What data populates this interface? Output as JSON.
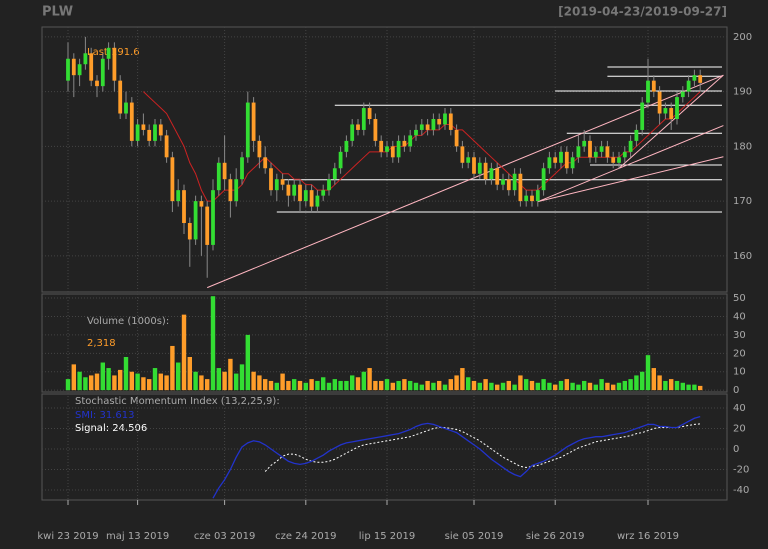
{
  "chart_data": {
    "type": "candlestick",
    "title": "PLW",
    "range_label": "[2019-04-23/2019-09-27]",
    "last_label": "Last 191.6",
    "up_color": "#33dd33",
    "down_color": "#ff9d2a",
    "sma_color": "#cc2222",
    "level_color": "#ffffff",
    "trend_color": "#ffb6c1",
    "ylim": [
      153.4,
      201.8
    ],
    "yticks": [
      160,
      170,
      180,
      190,
      200
    ],
    "xticks": [
      {
        "value": 0,
        "label": "kwi 23 2019"
      },
      {
        "value": 12,
        "label": "maj 13 2019"
      },
      {
        "value": 27,
        "label": "cze 03 2019"
      },
      {
        "value": 41,
        "label": "cze 24 2019"
      },
      {
        "value": 55,
        "label": "lip 15 2019"
      },
      {
        "value": 70,
        "label": "sie 05 2019"
      },
      {
        "value": 84,
        "label": "sie 26 2019"
      },
      {
        "value": 100,
        "label": "wrz 16 2019"
      }
    ],
    "candles": [
      [
        192,
        199,
        190,
        196
      ],
      [
        196,
        197,
        189,
        193
      ],
      [
        193,
        196,
        191,
        195
      ],
      [
        195,
        200,
        194,
        197
      ],
      [
        197,
        198,
        191,
        192
      ],
      [
        192,
        193,
        189,
        191
      ],
      [
        191,
        197,
        190,
        196
      ],
      [
        196,
        199,
        194,
        198
      ],
      [
        198,
        199,
        190,
        192
      ],
      [
        192,
        193,
        185,
        186
      ],
      [
        186,
        190,
        185,
        188
      ],
      [
        188,
        189,
        180,
        181
      ],
      [
        181,
        185,
        180,
        184
      ],
      [
        184,
        186,
        182,
        183
      ],
      [
        183,
        184,
        180,
        181
      ],
      [
        181,
        185,
        180,
        184
      ],
      [
        184,
        185,
        181,
        182
      ],
      [
        182,
        183,
        177,
        178
      ],
      [
        178,
        179,
        168,
        170
      ],
      [
        170,
        174,
        169,
        172
      ],
      [
        172,
        173,
        164,
        166
      ],
      [
        166,
        167,
        158,
        163
      ],
      [
        163,
        171,
        162,
        170
      ],
      [
        170,
        171,
        160,
        169
      ],
      [
        169,
        170,
        156,
        162
      ],
      [
        162,
        174,
        161,
        172
      ],
      [
        172,
        178,
        171,
        177
      ],
      [
        177,
        182,
        172,
        174
      ],
      [
        174,
        175,
        167,
        170
      ],
      [
        170,
        176,
        169,
        174
      ],
      [
        174,
        179,
        173,
        178
      ],
      [
        178,
        190,
        177,
        188
      ],
      [
        188,
        189,
        179,
        181
      ],
      [
        181,
        182,
        176,
        178
      ],
      [
        178,
        180,
        175,
        176
      ],
      [
        176,
        177,
        171,
        172
      ],
      [
        172,
        175,
        170,
        174
      ],
      [
        174,
        175,
        172,
        173
      ],
      [
        173,
        174,
        169,
        171
      ],
      [
        171,
        174,
        170,
        173
      ],
      [
        173,
        174,
        168,
        170
      ],
      [
        170,
        173,
        169,
        172
      ],
      [
        172,
        173,
        168,
        169
      ],
      [
        169,
        172,
        168,
        171
      ],
      [
        171,
        173,
        170,
        172
      ],
      [
        172,
        175,
        171,
        174
      ],
      [
        174,
        177,
        173,
        176
      ],
      [
        176,
        180,
        175,
        179
      ],
      [
        179,
        182,
        178,
        181
      ],
      [
        181,
        185,
        180,
        184
      ],
      [
        184,
        185,
        182,
        183
      ],
      [
        183,
        188,
        182,
        187
      ],
      [
        187,
        188,
        184,
        185
      ],
      [
        185,
        186,
        180,
        181
      ],
      [
        181,
        182,
        178,
        179
      ],
      [
        179,
        181,
        178,
        180
      ],
      [
        180,
        181,
        177,
        178
      ],
      [
        178,
        182,
        177,
        181
      ],
      [
        181,
        182,
        179,
        180
      ],
      [
        180,
        183,
        179,
        182
      ],
      [
        182,
        184,
        181,
        183
      ],
      [
        183,
        185,
        182,
        184
      ],
      [
        184,
        185,
        182,
        183
      ],
      [
        183,
        186,
        182,
        185
      ],
      [
        185,
        186,
        183,
        184
      ],
      [
        184,
        187,
        183,
        186
      ],
      [
        186,
        187,
        182,
        183
      ],
      [
        183,
        184,
        179,
        180
      ],
      [
        180,
        181,
        176,
        177
      ],
      [
        177,
        179,
        176,
        178
      ],
      [
        178,
        179,
        174,
        175
      ],
      [
        175,
        178,
        174,
        177
      ],
      [
        177,
        178,
        173,
        174
      ],
      [
        174,
        177,
        173,
        176
      ],
      [
        176,
        177,
        172,
        173
      ],
      [
        173,
        175,
        172,
        174
      ],
      [
        174,
        175,
        171,
        172
      ],
      [
        172,
        176,
        171,
        175
      ],
      [
        175,
        176,
        169,
        170
      ],
      [
        170,
        172,
        169,
        171
      ],
      [
        171,
        172,
        169,
        170
      ],
      [
        170,
        173,
        169,
        172
      ],
      [
        172,
        177,
        171,
        176
      ],
      [
        176,
        179,
        175,
        178
      ],
      [
        178,
        179,
        176,
        177
      ],
      [
        177,
        180,
        176,
        179
      ],
      [
        179,
        180,
        175,
        176
      ],
      [
        176,
        179,
        175,
        178
      ],
      [
        178,
        182,
        177,
        180
      ],
      [
        180,
        183,
        179,
        181
      ],
      [
        181,
        182,
        177,
        178
      ],
      [
        178,
        180,
        177,
        179
      ],
      [
        179,
        181,
        178,
        180
      ],
      [
        180,
        181,
        177,
        178
      ],
      [
        178,
        179,
        176,
        177
      ],
      [
        177,
        179,
        176,
        178
      ],
      [
        178,
        180,
        177,
        179
      ],
      [
        179,
        182,
        178,
        181
      ],
      [
        181,
        184,
        180,
        183
      ],
      [
        183,
        189,
        182,
        188
      ],
      [
        188,
        196,
        187,
        192
      ],
      [
        192,
        193,
        189,
        190
      ],
      [
        190,
        191,
        184,
        186
      ],
      [
        186,
        188,
        185,
        187
      ],
      [
        187,
        188,
        183,
        185
      ],
      [
        185,
        190,
        184,
        189
      ],
      [
        189,
        191,
        188,
        190
      ],
      [
        190,
        193,
        189,
        192
      ],
      [
        192,
        194,
        191,
        193
      ],
      [
        193,
        194,
        190,
        191.6
      ]
    ],
    "sma": [
      null,
      null,
      null,
      null,
      null,
      null,
      null,
      null,
      null,
      null,
      null,
      null,
      null,
      190,
      189,
      188,
      187,
      186,
      184,
      182,
      180,
      177,
      175,
      172,
      170,
      170,
      171,
      172,
      172,
      172,
      173,
      175,
      176,
      177,
      178,
      177,
      176,
      175,
      175,
      174,
      174,
      173,
      173,
      172,
      172,
      172,
      173,
      174,
      175,
      176,
      177,
      178,
      179,
      179,
      179,
      179,
      180,
      180,
      180,
      181,
      182,
      182,
      183,
      183,
      183,
      184,
      184,
      183,
      183,
      182,
      181,
      180,
      179,
      178,
      177,
      176,
      175,
      174,
      173,
      172,
      172,
      172,
      173,
      174,
      175,
      176,
      177,
      177,
      178,
      178,
      178,
      178,
      178,
      178,
      178,
      178,
      179,
      179,
      180,
      181,
      182,
      183,
      184,
      185,
      185,
      186,
      187,
      188,
      189,
      190
    ],
    "levels": [
      {
        "start": 93,
        "value": 194.5
      },
      {
        "start": 93,
        "value": 192.8
      },
      {
        "start": 84,
        "value": 190.1
      },
      {
        "start": 46,
        "value": 187.5
      },
      {
        "start": 86,
        "value": 182.4
      },
      {
        "start": 90,
        "value": 176.6
      },
      {
        "start": 37,
        "value": 173.9
      },
      {
        "start": 36,
        "value": 168
      }
    ],
    "trendlines": [
      {
        "from": [
          24,
          154.2
        ],
        "to": [
          113,
          193
        ]
      },
      {
        "from": [
          81,
          169.9
        ],
        "to": [
          113,
          183.8
        ]
      },
      {
        "from": [
          81,
          169.9
        ],
        "to": [
          113,
          178.1
        ]
      },
      {
        "from": [
          95,
          176
        ],
        "to": [
          113,
          193
        ]
      }
    ],
    "volume": {
      "label": "Volume (1000s):",
      "last_label": "2,318",
      "ylim": [
        -1,
        52.2
      ],
      "yticks": [
        0,
        10,
        20,
        30,
        40,
        50
      ],
      "values": [
        6,
        14,
        10,
        7,
        8,
        9,
        15,
        12,
        8,
        11,
        18,
        10,
        9,
        7,
        6,
        12,
        9,
        8,
        24,
        15,
        41,
        18,
        10,
        8,
        6,
        51,
        12,
        10,
        17,
        9,
        14,
        30,
        10,
        8,
        6,
        5,
        4,
        9,
        5,
        6,
        5,
        4,
        6,
        5,
        7,
        4,
        6,
        5,
        5,
        8,
        7,
        10,
        12,
        5,
        5,
        6,
        4,
        5,
        6,
        5,
        4,
        3,
        5,
        4,
        5,
        3,
        6,
        8,
        12,
        7,
        5,
        4,
        6,
        4,
        3,
        4,
        5,
        3,
        8,
        6,
        5,
        4,
        6,
        4,
        3,
        5,
        6,
        4,
        3,
        5,
        4,
        3,
        6,
        4,
        3,
        4,
        5,
        6,
        8,
        10,
        19,
        12,
        8,
        5,
        6,
        5,
        4,
        3,
        3,
        2.318
      ]
    },
    "smi": {
      "label": "Stochastic Momentum Index (13,2,25,9):",
      "smi_label": "SMI: 31.613",
      "signal_label": "Signal: 24.506",
      "smi_color": "#2233cc",
      "signal_color": "#ffffff",
      "ylim": [
        -49.8,
        53.7
      ],
      "yticks": [
        -40,
        -20,
        0,
        20,
        40
      ],
      "smi": [
        null,
        null,
        null,
        null,
        null,
        null,
        null,
        null,
        null,
        null,
        null,
        null,
        null,
        null,
        null,
        null,
        null,
        null,
        null,
        null,
        null,
        null,
        null,
        null,
        null,
        -48,
        -38,
        -30,
        -20,
        -8,
        2,
        6,
        8,
        7,
        4,
        0,
        -4,
        -8,
        -12,
        -14,
        -15,
        -14,
        -12,
        -9,
        -6,
        -2,
        1,
        4,
        6,
        7,
        8,
        9,
        10,
        11,
        12,
        13,
        14,
        15,
        17,
        19,
        22,
        24,
        25,
        24,
        22,
        20,
        18,
        16,
        12,
        8,
        4,
        0,
        -5,
        -10,
        -14,
        -18,
        -22,
        -25,
        -27,
        -22,
        -16,
        -14,
        -12,
        -9,
        -6,
        -2,
        2,
        5,
        8,
        10,
        11,
        12,
        12,
        13,
        14,
        15,
        16,
        18,
        20,
        22,
        24,
        24,
        22,
        22,
        21,
        21,
        24,
        27,
        30,
        31.613
      ],
      "signal": [
        null,
        null,
        null,
        null,
        null,
        null,
        null,
        null,
        null,
        null,
        null,
        null,
        null,
        null,
        null,
        null,
        null,
        null,
        null,
        null,
        null,
        null,
        null,
        null,
        null,
        null,
        null,
        null,
        null,
        null,
        null,
        null,
        null,
        null,
        -22,
        -16,
        -12,
        -7,
        -5,
        -5,
        -7,
        -10,
        -12,
        -13,
        -13,
        -12,
        -10,
        -7,
        -4,
        -1,
        2,
        4,
        5,
        6,
        7,
        8,
        9,
        10,
        11,
        12,
        14,
        16,
        18,
        20,
        21,
        21,
        20,
        19,
        17,
        14,
        11,
        8,
        4,
        0,
        -4,
        -8,
        -11,
        -14,
        -17,
        -18,
        -17,
        -16,
        -14,
        -12,
        -10,
        -8,
        -5,
        -2,
        1,
        3,
        5,
        7,
        8,
        9,
        10,
        11,
        12,
        13,
        15,
        16,
        18,
        20,
        21,
        21,
        21,
        21,
        22,
        23,
        24,
        24.506
      ]
    }
  }
}
